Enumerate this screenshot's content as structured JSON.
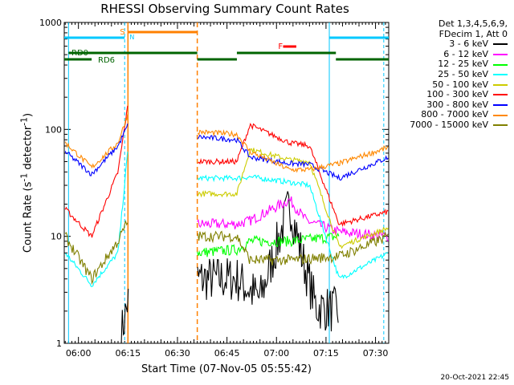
{
  "chart_data": {
    "type": "line",
    "title": "RHESSI Observing Summary Count Rates",
    "xlabel": "Start Time (07-Nov-05 05:55:42)",
    "ylabel": "Count Rate (s^-1 detector^-1)",
    "ylabel_parts": {
      "a": "Count Rate (s",
      "b": "-1",
      "c": " detector",
      "d": "-1",
      "e": ")"
    },
    "yscale": "log",
    "ylim": [
      1,
      1000
    ],
    "xlim": [
      "05:55:42",
      "07:34:00"
    ],
    "xtick_labels": [
      "06:00",
      "06:15",
      "06:30",
      "06:45",
      "07:00",
      "07:15",
      "07:30"
    ],
    "ytick_labels": [
      "1",
      "10",
      "100",
      "1000"
    ],
    "legend_header": [
      "Det 1,3,4,5,6,9,",
      "FDecim 1, Att 0"
    ],
    "series": [
      {
        "name": "3 - 6 keV",
        "color": "#000000",
        "values": [
          [
            "06:13",
            1.2
          ],
          [
            "06:15",
            2.5
          ],
          [
            "06:36",
            4
          ],
          [
            "06:48",
            4
          ],
          [
            "06:55",
            2.6
          ],
          [
            "07:04",
            20
          ],
          [
            "07:08",
            6
          ],
          [
            "07:12",
            2.2
          ],
          [
            "07:19",
            2
          ]
        ]
      },
      {
        "name": "6 - 12 keV",
        "color": "#ff00ff",
        "values": [
          [
            "06:36",
            13
          ],
          [
            "06:48",
            13
          ],
          [
            "06:52",
            14
          ],
          [
            "07:04",
            22
          ],
          [
            "07:09",
            14
          ],
          [
            "07:19",
            11
          ],
          [
            "07:34",
            10
          ]
        ]
      },
      {
        "name": "12 - 25 keV",
        "color": "#00ff00",
        "values": [
          [
            "06:36",
            7
          ],
          [
            "06:48",
            7.5
          ],
          [
            "06:52",
            9
          ],
          [
            "07:04",
            9
          ],
          [
            "07:19",
            10
          ]
        ]
      },
      {
        "name": "25 - 50 keV",
        "color": "#00ffff",
        "values": [
          [
            "05:56",
            7
          ],
          [
            "06:04",
            3.5
          ],
          [
            "06:12",
            7
          ],
          [
            "06:15",
            65
          ],
          [
            "06:36",
            35
          ],
          [
            "06:48",
            35
          ],
          [
            "06:52",
            36
          ],
          [
            "07:04",
            32
          ],
          [
            "07:10",
            30
          ],
          [
            "07:19",
            4
          ],
          [
            "07:34",
            7
          ]
        ]
      },
      {
        "name": "50 - 100 keV",
        "color": "#cccc00",
        "values": [
          [
            "06:36",
            25
          ],
          [
            "06:48",
            25
          ],
          [
            "06:52",
            65
          ],
          [
            "07:04",
            52
          ],
          [
            "07:10",
            50
          ],
          [
            "07:19",
            8
          ],
          [
            "07:34",
            12
          ]
        ]
      },
      {
        "name": "100 - 300 keV",
        "color": "#ff0000",
        "values": [
          [
            "05:56",
            18
          ],
          [
            "06:04",
            10
          ],
          [
            "06:12",
            40
          ],
          [
            "06:15",
            170
          ],
          [
            "06:36",
            50
          ],
          [
            "06:48",
            50
          ],
          [
            "06:52",
            110
          ],
          [
            "07:04",
            75
          ],
          [
            "07:10",
            70
          ],
          [
            "07:19",
            13
          ],
          [
            "07:34",
            17
          ]
        ]
      },
      {
        "name": "300 - 800 keV",
        "color": "#0000ff",
        "values": [
          [
            "05:56",
            62
          ],
          [
            "06:04",
            38
          ],
          [
            "06:12",
            70
          ],
          [
            "06:15",
            110
          ],
          [
            "06:36",
            85
          ],
          [
            "06:48",
            80
          ],
          [
            "06:52",
            55
          ],
          [
            "07:04",
            48
          ],
          [
            "07:10",
            47
          ],
          [
            "07:19",
            35
          ],
          [
            "07:34",
            55
          ]
        ]
      },
      {
        "name": "800 - 7000 keV",
        "color": "#ff8800",
        "values": [
          [
            "05:56",
            75
          ],
          [
            "06:04",
            44
          ],
          [
            "06:12",
            75
          ],
          [
            "06:15",
            140
          ],
          [
            "06:36",
            95
          ],
          [
            "06:48",
            90
          ],
          [
            "06:52",
            62
          ],
          [
            "07:04",
            42
          ],
          [
            "07:10",
            42
          ],
          [
            "07:19",
            48
          ],
          [
            "07:34",
            68
          ]
        ]
      },
      {
        "name": "7000 - 15000 keV",
        "color": "#808000",
        "values": [
          [
            "05:56",
            10
          ],
          [
            "06:04",
            4
          ],
          [
            "06:12",
            9
          ],
          [
            "06:15",
            14
          ],
          [
            "06:36",
            10
          ],
          [
            "06:48",
            10
          ],
          [
            "06:52",
            6
          ],
          [
            "07:04",
            6
          ],
          [
            "07:19",
            6.5
          ],
          [
            "07:34",
            10
          ]
        ]
      }
    ],
    "annotations": [
      {
        "label": "S",
        "color": "#ff8000"
      },
      {
        "label": "N",
        "color": "#00c8ff"
      },
      {
        "label": "F",
        "color": "#ff0000"
      },
      {
        "label": "RD0",
        "color": "#006400"
      },
      {
        "label": "RD6",
        "color": "#006400"
      }
    ],
    "grid": false
  },
  "timestamp": "20-Oct-2021 22:45"
}
